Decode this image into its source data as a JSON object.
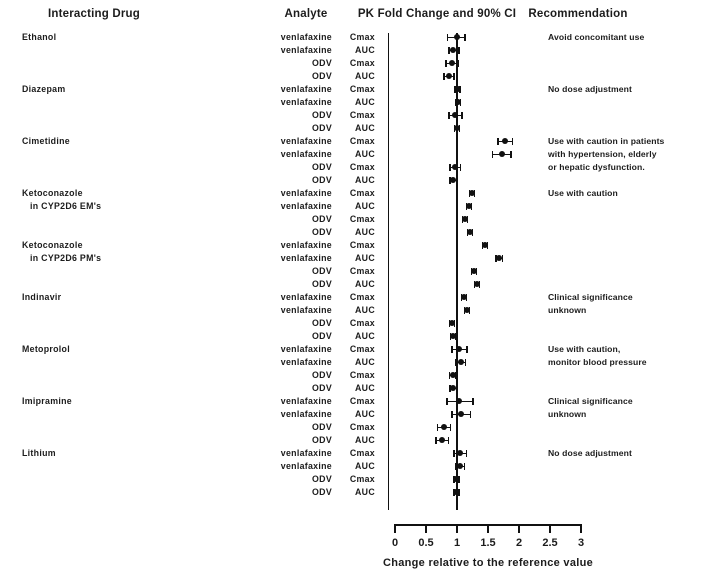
{
  "header": {
    "col_drug": "Interacting Drug",
    "col_analyte": "Analyte",
    "col_plot": "PK Fold Change and 90% CI",
    "col_recommendation": "Recommendation"
  },
  "chart_data": {
    "type": "scatter",
    "subtype": "forest-plot",
    "title": "PK Fold Change and 90% CI",
    "xlabel": "Change relative to the reference value",
    "xlim": [
      0,
      3
    ],
    "reference_line": 1,
    "x_ticks": [
      0,
      0.5,
      1,
      1.5,
      2,
      2.5,
      3
    ],
    "x_tick_labels": [
      "0",
      "0.5",
      "1",
      "1.5",
      "2",
      "2.5",
      "3"
    ],
    "marker_color": "#111111",
    "groups": [
      {
        "drug": "Ethanol",
        "drug_line2": "",
        "recommendation": [
          "Avoid concomitant use"
        ],
        "rows": [
          {
            "analyte": "venlafaxine",
            "measure": "Cmax",
            "value": 1.0,
            "ci_low": 0.85,
            "ci_high": 1.13
          },
          {
            "analyte": "venlafaxine",
            "measure": "AUC",
            "value": 0.94,
            "ci_low": 0.87,
            "ci_high": 1.03
          },
          {
            "analyte": "ODV",
            "measure": "Cmax",
            "value": 0.92,
            "ci_low": 0.82,
            "ci_high": 1.02
          },
          {
            "analyte": "ODV",
            "measure": "AUC",
            "value": 0.87,
            "ci_low": 0.79,
            "ci_high": 0.95
          }
        ]
      },
      {
        "drug": "Diazepam",
        "drug_line2": "",
        "recommendation": [
          "No dose adjustment"
        ],
        "rows": [
          {
            "analyte": "venlafaxine",
            "measure": "Cmax",
            "value": 1.01,
            "ci_low": 0.97,
            "ci_high": 1.05
          },
          {
            "analyte": "venlafaxine",
            "measure": "AUC",
            "value": 1.02,
            "ci_low": 0.98,
            "ci_high": 1.06
          },
          {
            "analyte": "ODV",
            "measure": "Cmax",
            "value": 0.97,
            "ci_low": 0.87,
            "ci_high": 1.08
          },
          {
            "analyte": "ODV",
            "measure": "AUC",
            "value": 1.0,
            "ci_low": 0.96,
            "ci_high": 1.04
          }
        ]
      },
      {
        "drug": "Cimetidine",
        "drug_line2": "",
        "recommendation": [
          "Use with caution in patients",
          "with hypertension, elderly",
          "or hepatic dysfunction."
        ],
        "rows": [
          {
            "analyte": "venlafaxine",
            "measure": "Cmax",
            "value": 1.77,
            "ci_low": 1.66,
            "ci_high": 1.9
          },
          {
            "analyte": "venlafaxine",
            "measure": "AUC",
            "value": 1.72,
            "ci_low": 1.57,
            "ci_high": 1.87
          },
          {
            "analyte": "ODV",
            "measure": "Cmax",
            "value": 0.97,
            "ci_low": 0.89,
            "ci_high": 1.06
          },
          {
            "analyte": "ODV",
            "measure": "AUC",
            "value": 0.94,
            "ci_low": 0.89,
            "ci_high": 1.0
          }
        ]
      },
      {
        "drug": "Ketoconazole",
        "drug_line2": "in CYP2D6 EM's",
        "recommendation": [
          "Use with caution"
        ],
        "rows": [
          {
            "analyte": "venlafaxine",
            "measure": "Cmax",
            "value": 1.24,
            "ci_low": 1.2,
            "ci_high": 1.28
          },
          {
            "analyte": "venlafaxine",
            "measure": "AUC",
            "value": 1.19,
            "ci_low": 1.15,
            "ci_high": 1.23
          },
          {
            "analyte": "ODV",
            "measure": "Cmax",
            "value": 1.13,
            "ci_low": 1.09,
            "ci_high": 1.17
          },
          {
            "analyte": "ODV",
            "measure": "AUC",
            "value": 1.21,
            "ci_low": 1.17,
            "ci_high": 1.25
          }
        ]
      },
      {
        "drug": "Ketoconazole",
        "drug_line2": "in CYP2D6 PM's",
        "recommendation": [],
        "rows": [
          {
            "analyte": "venlafaxine",
            "measure": "Cmax",
            "value": 1.45,
            "ci_low": 1.41,
            "ci_high": 1.49
          },
          {
            "analyte": "venlafaxine",
            "measure": "AUC",
            "value": 1.68,
            "ci_low": 1.63,
            "ci_high": 1.73
          },
          {
            "analyte": "ODV",
            "measure": "Cmax",
            "value": 1.27,
            "ci_low": 1.23,
            "ci_high": 1.31
          },
          {
            "analyte": "ODV",
            "measure": "AUC",
            "value": 1.32,
            "ci_low": 1.28,
            "ci_high": 1.36
          }
        ]
      },
      {
        "drug": "Indinavir",
        "drug_line2": "",
        "recommendation": [
          "Clinical significance",
          "unknown"
        ],
        "rows": [
          {
            "analyte": "venlafaxine",
            "measure": "Cmax",
            "value": 1.11,
            "ci_low": 1.07,
            "ci_high": 1.15
          },
          {
            "analyte": "venlafaxine",
            "measure": "AUC",
            "value": 1.16,
            "ci_low": 1.12,
            "ci_high": 1.2
          },
          {
            "analyte": "ODV",
            "measure": "Cmax",
            "value": 0.92,
            "ci_low": 0.88,
            "ci_high": 0.96
          },
          {
            "analyte": "ODV",
            "measure": "AUC",
            "value": 0.94,
            "ci_low": 0.9,
            "ci_high": 0.98
          }
        ]
      },
      {
        "drug": "Metoprolol",
        "drug_line2": "",
        "recommendation": [
          "Use with caution,",
          "monitor blood pressure"
        ],
        "rows": [
          {
            "analyte": "venlafaxine",
            "measure": "Cmax",
            "value": 1.04,
            "ci_low": 0.92,
            "ci_high": 1.16
          },
          {
            "analyte": "venlafaxine",
            "measure": "AUC",
            "value": 1.06,
            "ci_low": 0.98,
            "ci_high": 1.14
          },
          {
            "analyte": "ODV",
            "measure": "Cmax",
            "value": 0.93,
            "ci_low": 0.88,
            "ci_high": 0.98
          },
          {
            "analyte": "ODV",
            "measure": "AUC",
            "value": 0.94,
            "ci_low": 0.89,
            "ci_high": 0.99
          }
        ]
      },
      {
        "drug": "Imipramine",
        "drug_line2": "",
        "recommendation": [
          "Clinical significance",
          "unknown"
        ],
        "rows": [
          {
            "analyte": "venlafaxine",
            "measure": "Cmax",
            "value": 1.03,
            "ci_low": 0.84,
            "ci_high": 1.26
          },
          {
            "analyte": "venlafaxine",
            "measure": "AUC",
            "value": 1.06,
            "ci_low": 0.92,
            "ci_high": 1.22
          },
          {
            "analyte": "ODV",
            "measure": "Cmax",
            "value": 0.79,
            "ci_low": 0.69,
            "ci_high": 0.9
          },
          {
            "analyte": "ODV",
            "measure": "AUC",
            "value": 0.75,
            "ci_low": 0.66,
            "ci_high": 0.86
          }
        ]
      },
      {
        "drug": "Lithium",
        "drug_line2": "",
        "recommendation": [
          "No dose adjustment"
        ],
        "rows": [
          {
            "analyte": "venlafaxine",
            "measure": "Cmax",
            "value": 1.05,
            "ci_low": 0.95,
            "ci_high": 1.15
          },
          {
            "analyte": "venlafaxine",
            "measure": "AUC",
            "value": 1.05,
            "ci_low": 0.98,
            "ci_high": 1.12
          },
          {
            "analyte": "ODV",
            "measure": "Cmax",
            "value": 0.99,
            "ci_low": 0.95,
            "ci_high": 1.03
          },
          {
            "analyte": "ODV",
            "measure": "AUC",
            "value": 0.99,
            "ci_low": 0.95,
            "ci_high": 1.03
          }
        ]
      }
    ]
  }
}
